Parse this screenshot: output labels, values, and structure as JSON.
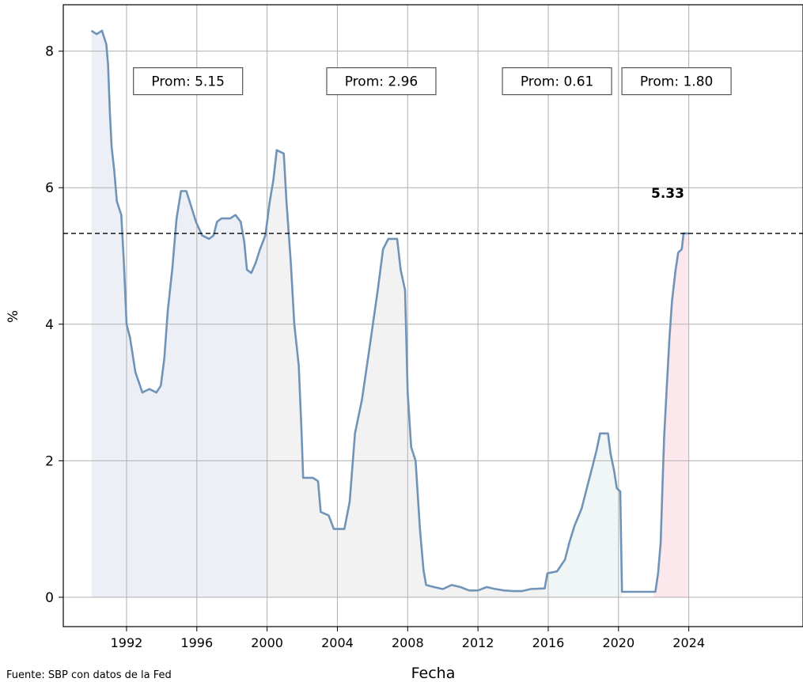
{
  "chart_data": {
    "type": "line",
    "xlabel": "Fecha",
    "ylabel": "%",
    "x_ticks": [
      "1992",
      "1996",
      "2000",
      "2004",
      "2008",
      "2012",
      "2016",
      "2020",
      "2024"
    ],
    "y_ticks": [
      "0",
      "2",
      "4",
      "6",
      "8"
    ],
    "xlim": [
      1988.4,
      2030.5
    ],
    "ylim": [
      -0.43,
      8.68
    ],
    "grid": true,
    "series": [
      {
        "color": "#7094b8",
        "points": [
          [
            1990.0,
            8.3
          ],
          [
            1990.3,
            8.25
          ],
          [
            1990.6,
            8.3
          ],
          [
            1990.85,
            8.1
          ],
          [
            1990.95,
            7.8
          ],
          [
            1991.05,
            7.1
          ],
          [
            1991.15,
            6.6
          ],
          [
            1991.3,
            6.25
          ],
          [
            1991.45,
            5.8
          ],
          [
            1991.7,
            5.6
          ],
          [
            1991.85,
            4.9
          ],
          [
            1992.0,
            4.0
          ],
          [
            1992.2,
            3.8
          ],
          [
            1992.5,
            3.3
          ],
          [
            1992.9,
            3.0
          ],
          [
            1993.3,
            3.05
          ],
          [
            1993.7,
            3.0
          ],
          [
            1993.95,
            3.1
          ],
          [
            1994.15,
            3.5
          ],
          [
            1994.35,
            4.2
          ],
          [
            1994.6,
            4.8
          ],
          [
            1994.85,
            5.55
          ],
          [
            1995.1,
            5.95
          ],
          [
            1995.4,
            5.95
          ],
          [
            1995.65,
            5.75
          ],
          [
            1995.95,
            5.5
          ],
          [
            1996.3,
            5.3
          ],
          [
            1996.7,
            5.25
          ],
          [
            1996.95,
            5.3
          ],
          [
            1997.15,
            5.5
          ],
          [
            1997.4,
            5.55
          ],
          [
            1997.9,
            5.55
          ],
          [
            1998.2,
            5.6
          ],
          [
            1998.5,
            5.5
          ],
          [
            1998.7,
            5.2
          ],
          [
            1998.85,
            4.8
          ],
          [
            1999.1,
            4.75
          ],
          [
            1999.35,
            4.9
          ],
          [
            1999.6,
            5.1
          ],
          [
            1999.9,
            5.3
          ],
          [
            2000.15,
            5.8
          ],
          [
            2000.35,
            6.1
          ],
          [
            2000.55,
            6.55
          ],
          [
            2000.95,
            6.5
          ],
          [
            2001.1,
            5.8
          ],
          [
            2001.35,
            4.9
          ],
          [
            2001.55,
            4.0
          ],
          [
            2001.8,
            3.4
          ],
          [
            2001.95,
            2.5
          ],
          [
            2002.05,
            1.75
          ],
          [
            2002.6,
            1.75
          ],
          [
            2002.9,
            1.7
          ],
          [
            2003.05,
            1.25
          ],
          [
            2003.5,
            1.2
          ],
          [
            2003.8,
            1.0
          ],
          [
            2004.4,
            1.0
          ],
          [
            2004.7,
            1.4
          ],
          [
            2005.0,
            2.4
          ],
          [
            2005.4,
            2.9
          ],
          [
            2005.8,
            3.6
          ],
          [
            2006.3,
            4.5
          ],
          [
            2006.6,
            5.1
          ],
          [
            2006.9,
            5.25
          ],
          [
            2007.4,
            5.25
          ],
          [
            2007.6,
            4.8
          ],
          [
            2007.85,
            4.5
          ],
          [
            2008.0,
            3.0
          ],
          [
            2008.2,
            2.2
          ],
          [
            2008.45,
            2.0
          ],
          [
            2008.7,
            1.0
          ],
          [
            2008.9,
            0.4
          ],
          [
            2009.05,
            0.18
          ],
          [
            2009.5,
            0.15
          ],
          [
            2010.0,
            0.12
          ],
          [
            2010.5,
            0.18
          ],
          [
            2011.0,
            0.15
          ],
          [
            2011.5,
            0.1
          ],
          [
            2012.0,
            0.1
          ],
          [
            2012.5,
            0.15
          ],
          [
            2013.0,
            0.12
          ],
          [
            2013.5,
            0.1
          ],
          [
            2014.0,
            0.09
          ],
          [
            2014.5,
            0.09
          ],
          [
            2015.0,
            0.12
          ],
          [
            2015.8,
            0.13
          ],
          [
            2015.95,
            0.35
          ],
          [
            2016.5,
            0.38
          ],
          [
            2016.95,
            0.55
          ],
          [
            2017.2,
            0.8
          ],
          [
            2017.5,
            1.05
          ],
          [
            2017.9,
            1.3
          ],
          [
            2018.2,
            1.6
          ],
          [
            2018.5,
            1.9
          ],
          [
            2018.75,
            2.15
          ],
          [
            2018.95,
            2.4
          ],
          [
            2019.4,
            2.4
          ],
          [
            2019.55,
            2.1
          ],
          [
            2019.75,
            1.85
          ],
          [
            2019.9,
            1.6
          ],
          [
            2020.1,
            1.55
          ],
          [
            2020.2,
            0.08
          ],
          [
            2021.0,
            0.08
          ],
          [
            2021.5,
            0.08
          ],
          [
            2022.1,
            0.08
          ],
          [
            2022.25,
            0.35
          ],
          [
            2022.4,
            0.8
          ],
          [
            2022.5,
            1.6
          ],
          [
            2022.6,
            2.35
          ],
          [
            2022.75,
            3.1
          ],
          [
            2022.9,
            3.8
          ],
          [
            2023.05,
            4.35
          ],
          [
            2023.25,
            4.8
          ],
          [
            2023.4,
            5.05
          ],
          [
            2023.6,
            5.1
          ],
          [
            2023.7,
            5.33
          ],
          [
            2024.0,
            5.33
          ]
        ]
      }
    ],
    "shaded_periods": [
      {
        "start": 1990.0,
        "end": 2000.0,
        "color": "#dde4ee"
      },
      {
        "start": 2000.0,
        "end": 2016.0,
        "color": "#e7e7e9"
      },
      {
        "start": 2016.0,
        "end": 2020.2,
        "color": "#e4efee"
      },
      {
        "start": 2022.0,
        "end": 2024.0,
        "color": "#fad6dc"
      }
    ],
    "reference_line": {
      "y": 5.33,
      "label": "5.33",
      "style": "dashed"
    },
    "annotations": [
      {
        "text": "Prom: 5.15",
        "x": 1995.5,
        "y": 7.56
      },
      {
        "text": "Prom: 2.96",
        "x": 2006.5,
        "y": 7.56
      },
      {
        "text": "Prom: 0.61",
        "x": 2016.5,
        "y": 7.56
      },
      {
        "text": "Prom: 1.80",
        "x": 2023.3,
        "y": 7.56
      }
    ],
    "source": "Fuente: SBP con datos de la Fed"
  }
}
